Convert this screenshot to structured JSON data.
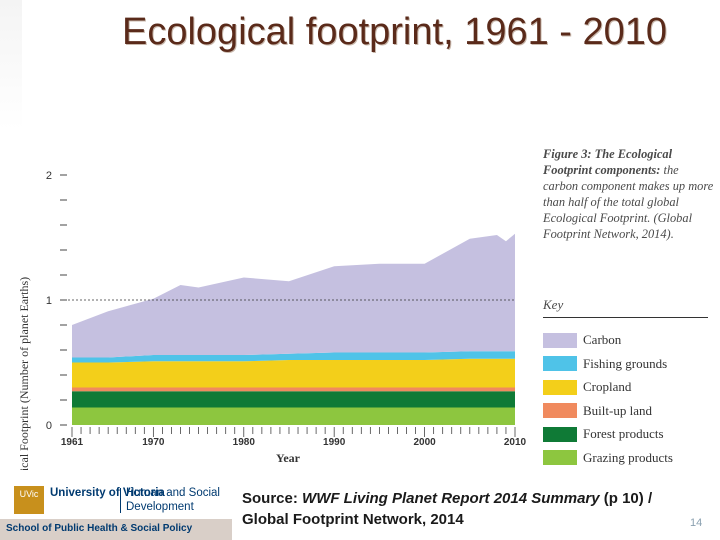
{
  "slide": {
    "title": "Ecological footprint, 1961 - 2010",
    "source_prefix": "Source:",
    "source_italic": "WWF Living Planet Report 2014 Summary",
    "source_rest": "(p 10) / Global Footprint Network, 2014",
    "page_number": "14"
  },
  "caption": {
    "bold": "Figure 3: The Ecological Footprint components:",
    "rest": "the carbon component makes up more than half of the total global Ecological Footprint. (Global Footprint Network, 2014)."
  },
  "logo": {
    "crest_text": "UVic",
    "university": "University of Victoria",
    "faculty": "Human and Social Development",
    "school": "School of Public Health & Social Policy"
  },
  "colors": {
    "carbon": "#c5c0e0",
    "fishing": "#4fc3e8",
    "cropland": "#f3cf1a",
    "builtup": "#f08a5e",
    "forest": "#0f7a36",
    "grazing": "#8dc63f",
    "title": "#5a2a1a"
  },
  "chart_data": {
    "type": "area",
    "title": "",
    "ylabel": "Ecological Footprint (Number of planet Earths)",
    "xlabel": "Year",
    "ylim": [
      0,
      2
    ],
    "y_ticks": [
      0,
      0.2,
      0.4,
      0.6,
      0.8,
      1,
      1.2,
      1.4,
      1.6,
      1.8,
      2
    ],
    "y_tick_labels": [
      "0",
      "",
      "",
      "",
      "",
      "1",
      "",
      "",
      "",
      "",
      "2"
    ],
    "x_tick_labels": [
      "1961",
      "1970",
      "1980",
      "1990",
      "2000",
      "2010"
    ],
    "reference_line": 1,
    "stacked": true,
    "x": [
      1961,
      1965,
      1970,
      1973,
      1975,
      1980,
      1985,
      1990,
      1995,
      2000,
      2005,
      2008,
      2009,
      2010
    ],
    "series": [
      {
        "name": "Grazing products",
        "values": [
          0.14,
          0.14,
          0.14,
          0.14,
          0.14,
          0.14,
          0.14,
          0.14,
          0.14,
          0.14,
          0.14,
          0.14,
          0.14,
          0.14
        ]
      },
      {
        "name": "Forest products",
        "values": [
          0.13,
          0.13,
          0.13,
          0.13,
          0.13,
          0.13,
          0.13,
          0.13,
          0.13,
          0.13,
          0.13,
          0.13,
          0.13,
          0.13
        ]
      },
      {
        "name": "Built-up land",
        "values": [
          0.03,
          0.03,
          0.03,
          0.03,
          0.03,
          0.03,
          0.03,
          0.03,
          0.03,
          0.03,
          0.03,
          0.03,
          0.03,
          0.03
        ]
      },
      {
        "name": "Cropland",
        "values": [
          0.2,
          0.2,
          0.21,
          0.21,
          0.21,
          0.21,
          0.22,
          0.22,
          0.22,
          0.22,
          0.23,
          0.23,
          0.23,
          0.23
        ]
      },
      {
        "name": "Fishing grounds",
        "values": [
          0.04,
          0.04,
          0.05,
          0.05,
          0.05,
          0.05,
          0.05,
          0.06,
          0.06,
          0.06,
          0.06,
          0.06,
          0.06,
          0.06
        ]
      },
      {
        "name": "Carbon",
        "values": [
          0.26,
          0.37,
          0.45,
          0.56,
          0.54,
          0.62,
          0.58,
          0.69,
          0.71,
          0.71,
          0.9,
          0.93,
          0.88,
          0.94
        ]
      }
    ],
    "legend": {
      "title": "Key",
      "placement": "right",
      "entries": [
        "Carbon",
        "Fishing grounds",
        "Cropland",
        "Built-up land",
        "Forest products",
        "Grazing products"
      ]
    }
  }
}
